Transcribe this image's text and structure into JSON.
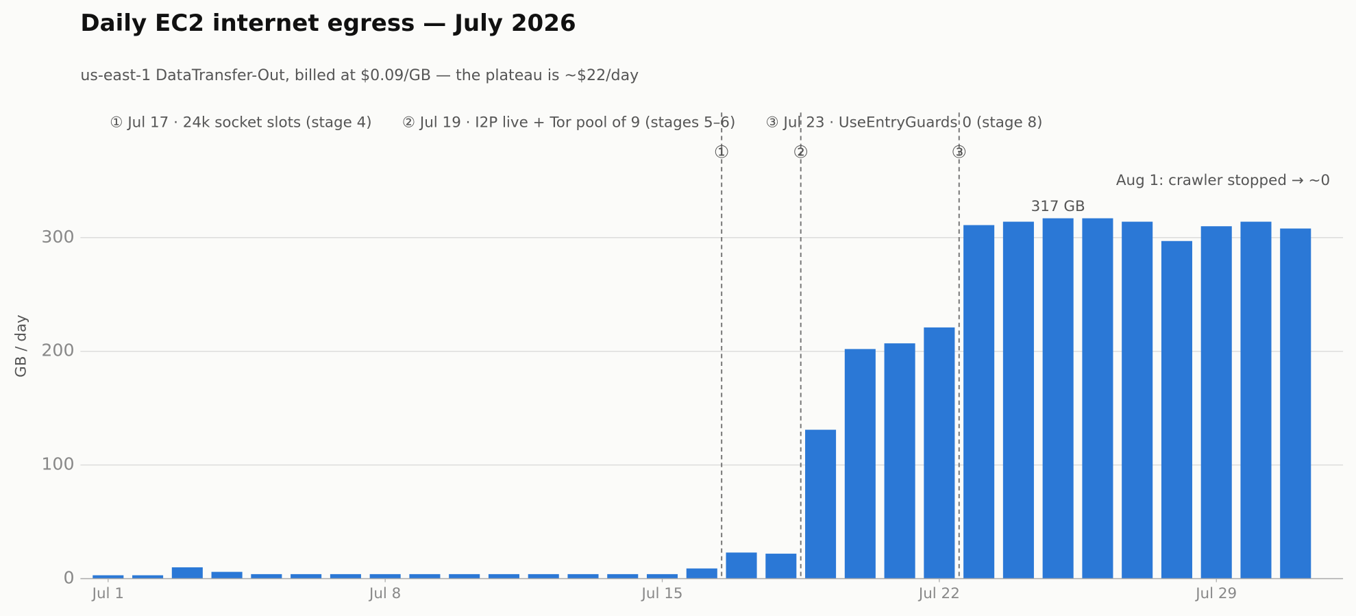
{
  "chart_data": {
    "type": "bar",
    "title": "Daily EC2 internet egress — July 2026",
    "subtitle": "us-east-1 DataTransfer-Out, billed at $0.09/GB — the plateau is ~$22/day",
    "y_label": "GB / day",
    "x": [
      1,
      2,
      3,
      4,
      5,
      6,
      7,
      8,
      9,
      10,
      11,
      12,
      13,
      14,
      15,
      16,
      17,
      18,
      19,
      20,
      21,
      22,
      23,
      24,
      25,
      26,
      27,
      28,
      29,
      30,
      31
    ],
    "values": [
      3,
      3,
      10,
      6,
      4,
      4,
      4,
      4,
      4,
      4,
      4,
      4,
      4,
      4,
      4,
      9,
      23,
      22,
      131,
      202,
      207,
      221,
      311,
      314,
      317,
      317,
      314,
      297,
      310,
      314,
      308
    ],
    "value_labels": [
      null,
      null,
      null,
      null,
      null,
      null,
      null,
      null,
      null,
      null,
      null,
      null,
      null,
      null,
      null,
      null,
      null,
      null,
      null,
      null,
      null,
      null,
      null,
      null,
      "317 GB",
      null,
      null,
      null,
      null,
      null,
      null
    ],
    "color": "#2b78d6",
    "xlim": [
      0.3,
      32.2
    ],
    "xticks": [
      {
        "value": 1,
        "label": "Jul 1"
      },
      {
        "value": 8,
        "label": "Jul 8"
      },
      {
        "value": 15,
        "label": "Jul 15"
      },
      {
        "value": 22,
        "label": "Jul 22"
      },
      {
        "value": 29,
        "label": "Jul 29"
      }
    ],
    "ylim": [
      0,
      410
    ],
    "yticks": [
      0,
      100,
      200,
      300
    ],
    "grid": true,
    "events": [
      {
        "marker": "①",
        "label": "① Jul 17 · 24k socket slots (stage 4)",
        "x": 16.5
      },
      {
        "marker": "②",
        "label": "② Jul 19 · I2P live + Tor pool of 9 (stages 5–6)",
        "x": 18.5
      },
      {
        "marker": "③",
        "label": "③ Jul 23 · UseEntryGuards 0 (stage 8)",
        "x": 22.5
      }
    ],
    "note": "Aug 1: crawler stopped → ~0"
  }
}
